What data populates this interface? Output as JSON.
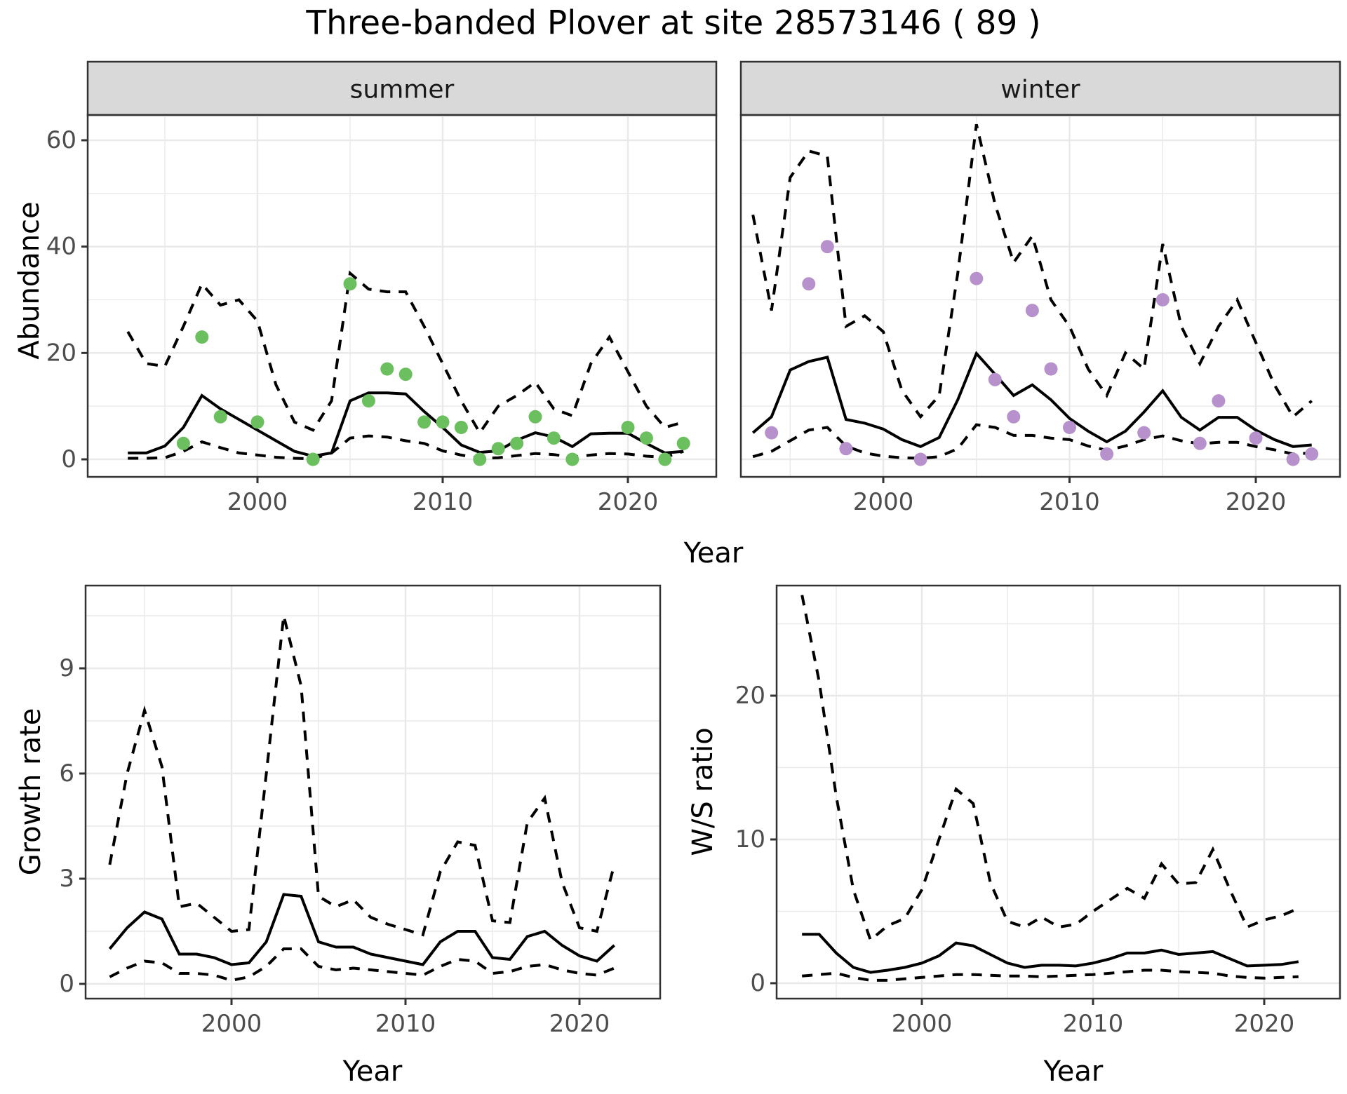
{
  "title": "Three-banded Plover at site 28573146 ( 89 )",
  "axis_titles": {
    "abundance": "Abundance",
    "growth": "Growth rate",
    "ratio": "W/S ratio",
    "x": "Year"
  },
  "facets": [
    "summer",
    "winter"
  ],
  "colors": {
    "summer_points": "#6cbf5f",
    "winter_points": "#b691cb",
    "line": "#000000",
    "strip_fill": "#d9d9d9",
    "strip_text": "#1a1a1a",
    "panel_border": "#333333",
    "grid": "#e9e9e9",
    "axis_text": "#4d4d4d",
    "tick_mark": "#333333"
  },
  "chart_data": [
    {
      "id": "abundance_summer",
      "type": "line",
      "facet_label": "summer",
      "xlabel": "Year",
      "ylabel": "Abundance",
      "x_ticks": [
        2000,
        2010,
        2020
      ],
      "y_ticks": [
        0,
        20,
        40,
        60
      ],
      "ylim": [
        -3,
        65
      ],
      "grid": true,
      "legend": "none",
      "years": [
        1993,
        1994,
        1995,
        1996,
        1997,
        1998,
        1999,
        2000,
        2001,
        2002,
        2003,
        2004,
        2005,
        2006,
        2007,
        2008,
        2009,
        2010,
        2011,
        2012,
        2013,
        2014,
        2015,
        2016,
        2017,
        2018,
        2019,
        2020,
        2021,
        2022,
        2023
      ],
      "series": [
        {
          "name": "median",
          "style": "solid",
          "values": [
            1.2,
            1.2,
            2.5,
            6,
            12,
            9.5,
            7.5,
            5.5,
            3.5,
            1.5,
            0.6,
            1.2,
            11,
            12.5,
            12.5,
            12.3,
            9,
            6,
            2.7,
            1.3,
            1.6,
            3.6,
            5,
            4.2,
            2.4,
            4.8,
            4.9,
            4.9,
            3,
            1.2,
            1.5
          ]
        },
        {
          "name": "upper_95ci",
          "style": "dashed",
          "values": [
            24,
            18,
            17.5,
            25,
            33,
            29,
            30,
            26,
            14,
            7,
            5.5,
            11,
            35,
            32,
            31.5,
            31.5,
            25,
            18,
            11,
            5,
            10,
            12,
            14.5,
            9.5,
            8.2,
            18,
            23,
            16.5,
            10,
            6,
            7
          ]
        },
        {
          "name": "lower_95ci",
          "style": "dashed",
          "values": [
            0.2,
            0.2,
            0.3,
            1.5,
            3.3,
            2.2,
            1.2,
            0.8,
            0.4,
            0.2,
            0.1,
            1.2,
            4,
            4.4,
            4.2,
            3.5,
            3,
            1.6,
            0.8,
            0.2,
            0.3,
            0.7,
            1.1,
            0.9,
            0.4,
            0.8,
            1.1,
            1,
            0.6,
            0.4,
            1.5
          ]
        }
      ],
      "observed_points": {
        "name": "observed_counts",
        "color": "#6cbf5f",
        "years": [
          1996,
          1997,
          1998,
          2000,
          2003,
          2005,
          2006,
          2007,
          2008,
          2009,
          2010,
          2011,
          2012,
          2013,
          2014,
          2015,
          2016,
          2017,
          2020,
          2021,
          2022,
          2023
        ],
        "values": [
          3,
          23,
          8,
          7,
          0,
          33,
          11,
          17,
          16,
          7,
          7,
          6,
          0,
          2,
          3,
          8,
          4,
          0,
          6,
          4,
          0,
          3
        ]
      }
    },
    {
      "id": "abundance_winter",
      "type": "line",
      "facet_label": "winter",
      "xlabel": "Year",
      "ylabel": "Abundance",
      "x_ticks": [
        2000,
        2010,
        2020
      ],
      "y_ticks": [
        0,
        20,
        40,
        60
      ],
      "ylim": [
        -3,
        65
      ],
      "grid": true,
      "legend": "none",
      "years": [
        1993,
        1994,
        1995,
        1996,
        1997,
        1998,
        1999,
        2000,
        2001,
        2002,
        2003,
        2004,
        2005,
        2006,
        2007,
        2008,
        2009,
        2010,
        2011,
        2012,
        2013,
        2014,
        2015,
        2016,
        2017,
        2018,
        2019,
        2020,
        2021,
        2022,
        2023
      ],
      "series": [
        {
          "name": "median",
          "style": "solid",
          "values": [
            5,
            8,
            16.8,
            18.4,
            19.2,
            7.5,
            6.8,
            5.7,
            3.7,
            2.4,
            4.1,
            11.2,
            19.9,
            16,
            12,
            14,
            11.2,
            7.7,
            5.3,
            3.3,
            5.3,
            8.9,
            12.9,
            7.9,
            5.5,
            7.9,
            7.9,
            5.5,
            3.7,
            2.4,
            2.7
          ]
        },
        {
          "name": "upper_95ci",
          "style": "dashed",
          "values": [
            46,
            28,
            53,
            58,
            57,
            25,
            27,
            24,
            13,
            8,
            12,
            35,
            63,
            48,
            37,
            42,
            30,
            25,
            17,
            12,
            20,
            17,
            40.5,
            25,
            18,
            25,
            30,
            22,
            14,
            8,
            11
          ]
        },
        {
          "name": "lower_95ci",
          "style": "dashed",
          "values": [
            0.5,
            1.5,
            3.5,
            5.5,
            6,
            2.5,
            1.2,
            0.6,
            0.3,
            0.2,
            0.5,
            2,
            6.5,
            6,
            4.5,
            4.5,
            4,
            3.7,
            2.5,
            1.7,
            2.5,
            3.7,
            4.4,
            3.5,
            2.9,
            3.2,
            3.2,
            2.4,
            1.8,
            1,
            1.2
          ]
        }
      ],
      "observed_points": {
        "name": "observed_counts",
        "color": "#b691cb",
        "years": [
          1994,
          1996,
          1997,
          1998,
          2002,
          2005,
          2006,
          2007,
          2008,
          2009,
          2010,
          2012,
          2014,
          2015,
          2017,
          2018,
          2020,
          2022,
          2023
        ],
        "values": [
          5,
          33,
          40,
          2,
          0,
          34,
          15,
          8,
          28,
          17,
          6,
          1,
          5,
          30,
          3,
          11,
          4,
          0,
          1
        ]
      }
    },
    {
      "id": "growth_rate",
      "type": "line",
      "facet_label": "",
      "xlabel": "Year",
      "ylabel": "Growth rate",
      "x_ticks": [
        2000,
        2010,
        2020
      ],
      "y_ticks": [
        0,
        3,
        6,
        9
      ],
      "ylim": [
        -0.2,
        11.3
      ],
      "grid": true,
      "legend": "none",
      "years": [
        1993,
        1994,
        1995,
        1996,
        1997,
        1998,
        1999,
        2000,
        2001,
        2002,
        2003,
        2004,
        2005,
        2006,
        2007,
        2008,
        2009,
        2010,
        2011,
        2012,
        2013,
        2014,
        2015,
        2016,
        2017,
        2018,
        2019,
        2020,
        2021,
        2022
      ],
      "series": [
        {
          "name": "median",
          "style": "solid",
          "values": [
            1,
            1.6,
            2.05,
            1.85,
            0.85,
            0.85,
            0.75,
            0.55,
            0.6,
            1.2,
            2.55,
            2.5,
            1.2,
            1.05,
            1.05,
            0.85,
            0.75,
            0.65,
            0.55,
            1.2,
            1.5,
            1.5,
            0.75,
            0.7,
            1.35,
            1.5,
            1.1,
            0.8,
            0.65,
            1.1
          ]
        },
        {
          "name": "upper_95ci",
          "style": "dashed",
          "values": [
            3.4,
            6,
            7.8,
            6.2,
            2.2,
            2.3,
            1.9,
            1.5,
            1.55,
            6,
            10.5,
            8.5,
            2.5,
            2.2,
            2.4,
            1.9,
            1.7,
            1.55,
            1.4,
            3.2,
            4.05,
            3.95,
            1.8,
            1.75,
            4.6,
            5.3,
            2.9,
            1.6,
            1.5,
            3.4
          ]
        },
        {
          "name": "lower_95ci",
          "style": "dashed",
          "values": [
            0.2,
            0.45,
            0.65,
            0.6,
            0.3,
            0.3,
            0.25,
            0.1,
            0.2,
            0.5,
            1,
            1,
            0.5,
            0.4,
            0.45,
            0.4,
            0.35,
            0.3,
            0.25,
            0.5,
            0.7,
            0.65,
            0.3,
            0.35,
            0.5,
            0.55,
            0.4,
            0.3,
            0.25,
            0.45
          ]
        }
      ]
    },
    {
      "id": "ws_ratio",
      "type": "line",
      "facet_label": "",
      "xlabel": "Year",
      "ylabel": "W/S ratio",
      "x_ticks": [
        2000,
        2010,
        2020
      ],
      "y_ticks": [
        0,
        10,
        20
      ],
      "ylim": [
        -1,
        27.7
      ],
      "grid": true,
      "legend": "none",
      "years": [
        1993,
        1994,
        1995,
        1996,
        1997,
        1998,
        1999,
        2000,
        2001,
        2002,
        2003,
        2004,
        2005,
        2006,
        2007,
        2008,
        2009,
        2010,
        2011,
        2012,
        2013,
        2014,
        2015,
        2016,
        2017,
        2018,
        2019,
        2020,
        2021,
        2022
      ],
      "series": [
        {
          "name": "median",
          "style": "solid",
          "values": [
            3.4,
            3.4,
            2.1,
            1.1,
            0.75,
            0.9,
            1.1,
            1.4,
            1.9,
            2.8,
            2.6,
            2,
            1.4,
            1.1,
            1.25,
            1.25,
            1.2,
            1.4,
            1.7,
            2.1,
            2.1,
            2.3,
            2,
            2.1,
            2.2,
            1.7,
            1.2,
            1.25,
            1.3,
            1.5
          ]
        },
        {
          "name": "upper_95ci",
          "style": "dashed",
          "values": [
            27,
            21,
            13,
            6.5,
            3,
            4,
            4.5,
            6.5,
            10,
            13.5,
            12.5,
            7,
            4.3,
            3.9,
            4.6,
            3.9,
            4.1,
            5,
            5.8,
            6.6,
            5.9,
            8.3,
            6.9,
            7,
            9.3,
            6.5,
            3.9,
            4.4,
            4.7,
            5.2
          ]
        },
        {
          "name": "lower_95ci",
          "style": "dashed",
          "values": [
            0.5,
            0.6,
            0.7,
            0.4,
            0.2,
            0.2,
            0.3,
            0.4,
            0.5,
            0.6,
            0.6,
            0.55,
            0.5,
            0.5,
            0.45,
            0.5,
            0.55,
            0.6,
            0.7,
            0.8,
            0.9,
            0.9,
            0.8,
            0.75,
            0.7,
            0.5,
            0.4,
            0.35,
            0.4,
            0.45
          ]
        }
      ]
    }
  ]
}
